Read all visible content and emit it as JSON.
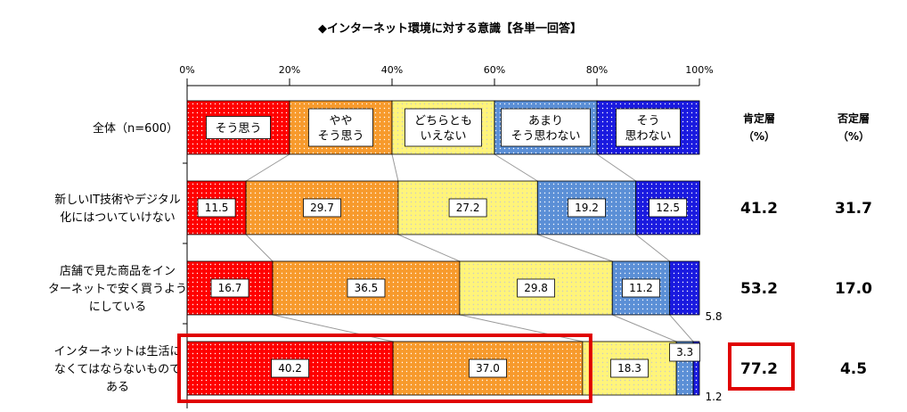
{
  "chart_data": {
    "type": "bar",
    "stacked": true,
    "orientation": "horizontal",
    "title": "◆インターネット環境に対する意識【各単一回答】",
    "x_ticks": [
      "0%",
      "20%",
      "40%",
      "60%",
      "80%",
      "100%"
    ],
    "xlim": [
      0,
      100
    ],
    "legend_row_label": "全体（n=600）",
    "categories": [
      {
        "label_lines": [
          "新しいIT技術やデジタル",
          "化にはついていけない"
        ]
      },
      {
        "label_lines": [
          "店舗で見た商品をイン",
          "ターネットで安く買うよう",
          "にしている"
        ]
      },
      {
        "label_lines": [
          "インターネットは生活に",
          "なくてはならないもので",
          "ある"
        ]
      }
    ],
    "series": [
      {
        "name_lines": [
          "そう思う"
        ],
        "color": "#ff0000",
        "dot": "#ffffff",
        "values": [
          11.5,
          16.7,
          40.2
        ],
        "labels": [
          "11.5",
          "16.7",
          "40.2"
        ]
      },
      {
        "name_lines": [
          "やや",
          "そう思う"
        ],
        "color": "#f79a2c",
        "dot": "#ffffff",
        "values": [
          29.7,
          36.5,
          37.0
        ],
        "labels": [
          "29.7",
          "36.5",
          "37.0"
        ]
      },
      {
        "name_lines": [
          "どちらとも",
          "いえない"
        ],
        "color": "#fff47a",
        "dot": "#c9c9c9",
        "values": [
          27.2,
          29.8,
          18.3
        ],
        "labels": [
          "27.2",
          "29.8",
          "18.3"
        ]
      },
      {
        "name_lines": [
          "あまり",
          "そう思わない"
        ],
        "color": "#5b8fd6",
        "dot": "#ffffff",
        "values": [
          19.2,
          11.2,
          3.3
        ],
        "labels": [
          "19.2",
          "11.2",
          "3.3"
        ]
      },
      {
        "name_lines": [
          "そう",
          "思わない"
        ],
        "color": "#1a1adf",
        "dot": "#ffffff",
        "values": [
          12.5,
          5.8,
          1.2
        ],
        "labels": [
          "12.5",
          "5.8",
          "1.2"
        ]
      }
    ],
    "affirm_header": [
      "肯定層",
      "（%）"
    ],
    "deny_header": [
      "否定層",
      "（%）"
    ],
    "affirm_values": [
      "41.2",
      "53.2",
      "77.2"
    ],
    "deny_values": [
      "31.7",
      "17.0",
      "4.5"
    ],
    "highlight_color": "#e00000"
  }
}
